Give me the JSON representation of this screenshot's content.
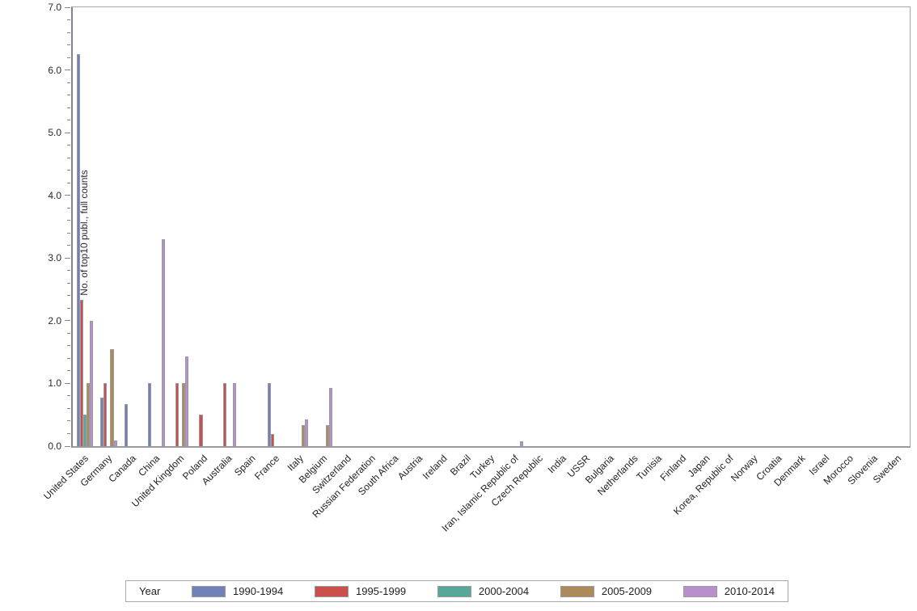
{
  "chart_data": {
    "type": "bar",
    "title": "",
    "xlabel": "",
    "ylabel": "No. of top10 publ., full counts",
    "ylim": [
      0,
      7
    ],
    "y_major_step": 1.0,
    "y_minor_step": 0.2,
    "y_tick_labels": [
      "0.0",
      "1.0",
      "2.0",
      "3.0",
      "4.0",
      "5.0",
      "6.0",
      "7.0"
    ],
    "grid": false,
    "legend_position": "bottom",
    "legend_title": "Year",
    "categories": [
      "United States",
      "Germany",
      "Canada",
      "China",
      "United Kingdom",
      "Poland",
      "Australia",
      "Spain",
      "France",
      "Italy",
      "Belgium",
      "Switzerland",
      "Russian Federation",
      "South Africa",
      "Austria",
      "Ireland",
      "Brazil",
      "Turkey",
      "Iran, Islamic Republic of",
      "Czech Republic",
      "India",
      "USSR",
      "Bulgaria",
      "Netherlands",
      "Tunisia",
      "Finland",
      "Japan",
      "Korea, Republic of",
      "Norway",
      "Croatia",
      "Denmark",
      "Israel",
      "Morocco",
      "Slovenia",
      "Sweden"
    ],
    "series": [
      {
        "name": "1990-1994",
        "color": "#7081b7",
        "values": [
          6.25,
          0.78,
          0.67,
          1.0,
          0,
          0,
          0,
          0,
          1.0,
          0,
          0,
          0,
          0,
          0,
          0,
          0,
          0,
          0,
          0,
          0,
          0,
          0,
          0,
          0,
          0,
          0,
          0,
          0,
          0,
          0,
          0,
          0,
          0,
          0,
          0
        ]
      },
      {
        "name": "1995-1999",
        "color": "#c94f4a",
        "values": [
          2.33,
          1.0,
          0,
          0,
          1.0,
          0.5,
          1.0,
          0,
          0.2,
          0,
          0,
          0,
          0,
          0,
          0,
          0,
          0,
          0,
          0,
          0,
          0,
          0,
          0,
          0,
          0,
          0,
          0,
          0,
          0,
          0,
          0,
          0,
          0,
          0,
          0
        ]
      },
      {
        "name": "2000-2004",
        "color": "#57a79b",
        "values": [
          0.5,
          0,
          0,
          0,
          0,
          0,
          0,
          0,
          0,
          0,
          0,
          0,
          0,
          0,
          0,
          0,
          0,
          0,
          0,
          0,
          0,
          0,
          0,
          0,
          0,
          0,
          0,
          0,
          0,
          0,
          0,
          0,
          0,
          0,
          0
        ]
      },
      {
        "name": "2005-2009",
        "color": "#ad8a5a",
        "values": [
          1.0,
          1.55,
          0,
          0,
          1.0,
          0,
          0,
          0,
          0,
          0.33,
          0.33,
          0,
          0,
          0,
          0,
          0,
          0,
          0,
          0,
          0,
          0,
          0,
          0,
          0,
          0,
          0,
          0,
          0,
          0,
          0,
          0,
          0,
          0,
          0,
          0
        ]
      },
      {
        "name": "2010-2014",
        "color": "#b88fcb",
        "values": [
          2.0,
          0.09,
          0,
          3.3,
          1.43,
          0,
          1.0,
          0,
          0,
          0.42,
          0.93,
          0,
          0,
          0,
          0,
          0,
          0,
          0,
          0.08,
          0,
          0,
          0,
          0,
          0,
          0,
          0,
          0,
          0,
          0,
          0,
          0,
          0,
          0,
          0,
          0
        ]
      }
    ],
    "bar_border_color": "#9a9aa0",
    "axis_color": "#84848c"
  }
}
